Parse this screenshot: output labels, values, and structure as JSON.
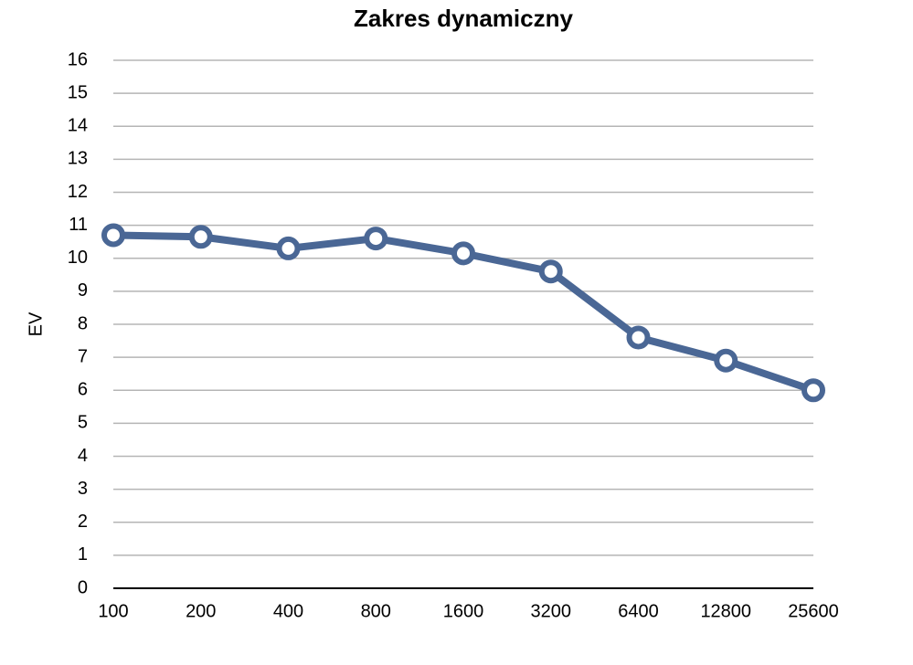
{
  "chart_data": {
    "type": "line",
    "title": "Zakres dynamiczny",
    "y_label": "EV",
    "categories": [
      "100",
      "200",
      "400",
      "800",
      "1600",
      "3200",
      "6400",
      "12800",
      "25600"
    ],
    "values": [
      10.7,
      10.65,
      10.3,
      10.6,
      10.15,
      9.6,
      7.6,
      6.9,
      6.0
    ],
    "color": "#4a6795",
    "ylim": [
      0,
      16
    ],
    "yticks": [
      0,
      1,
      2,
      3,
      4,
      5,
      6,
      7,
      8,
      9,
      10,
      11,
      12,
      13,
      14,
      15,
      16
    ],
    "grid": true
  }
}
